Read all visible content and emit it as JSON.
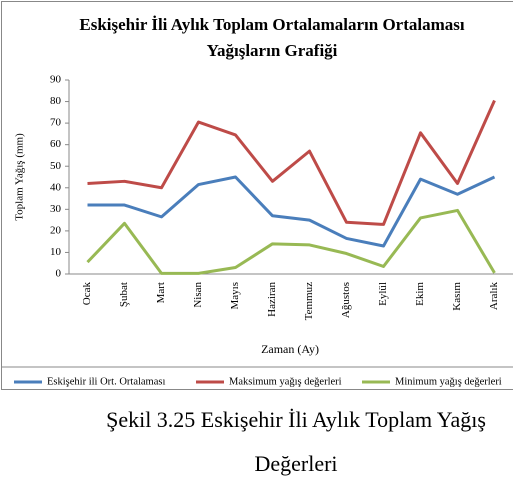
{
  "chart_data": {
    "type": "line",
    "title": "Eskişehir İli Aylık Toplam Ortalamaların Ortalaması Yağışların Grafiği",
    "x_label": "Zaman (Ay)",
    "y_label": "Toplam Yağış (mm)",
    "categories": [
      "Ocak",
      "Şubat",
      "Mart",
      "Nisan",
      "Mayıs",
      "Haziran",
      "Temmuz",
      "Ağustos",
      "Eylül",
      "Ekim",
      "Kasım",
      "Aralık"
    ],
    "series": [
      {
        "name": "Eskişehir ili Ort. Ortalaması",
        "color": "#4a7ebb",
        "values": [
          32,
          32,
          26.5,
          41.5,
          45,
          27,
          25,
          16.5,
          13,
          44,
          37,
          45
        ]
      },
      {
        "name": "Maksimum yağış değerleri",
        "color": "#be4b48",
        "values": [
          42,
          43,
          40,
          70.5,
          64.5,
          43,
          57,
          24,
          23,
          65.5,
          42,
          80.5
        ]
      },
      {
        "name": "Minimum yağış değerleri",
        "color": "#98b954",
        "values": [
          5.5,
          23.5,
          0.3,
          0.3,
          3,
          14,
          13.5,
          9.5,
          3.5,
          26,
          29.5,
          0.5
        ]
      }
    ],
    "ylim": [
      0,
      90
    ],
    "yticks": [
      0,
      10,
      20,
      30,
      40,
      50,
      60,
      70,
      80,
      90
    ],
    "grid": false,
    "legend": "bottom"
  },
  "caption": "Şekil 3.25 Eskişehir İli Aylık Toplam Yağış Değerleri"
}
